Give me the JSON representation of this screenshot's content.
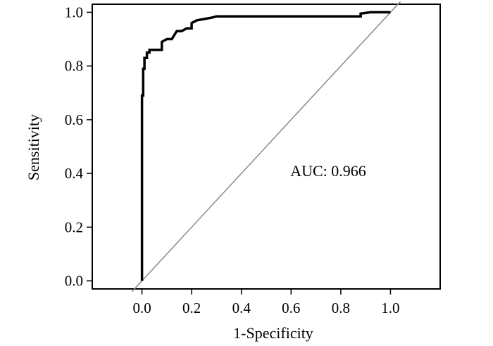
{
  "chart_data": {
    "type": "line",
    "xlabel": "1-Specificity",
    "ylabel": "Sensitivity",
    "xlim": [
      -0.2,
      1.2
    ],
    "ylim": [
      -0.03,
      1.03
    ],
    "xticks": [
      "0.0",
      "0.2",
      "0.4",
      "0.6",
      "0.8",
      "1.0"
    ],
    "yticks": [
      "0.0",
      "0.2",
      "0.4",
      "0.6",
      "0.8",
      "1.0"
    ],
    "annotation": "AUC: 0.966",
    "grid": false,
    "reference_line": {
      "x": [
        -0.04,
        1.04
      ],
      "y": [
        -0.04,
        1.04
      ],
      "color": "#8a8a8a"
    },
    "series": [
      {
        "color": "#000000",
        "x": [
          0.0,
          0.0,
          0.005,
          0.005,
          0.01,
          0.01,
          0.02,
          0.02,
          0.03,
          0.03,
          0.06,
          0.08,
          0.08,
          0.1,
          0.12,
          0.14,
          0.16,
          0.18,
          0.2,
          0.2,
          0.22,
          0.25,
          0.28,
          0.3,
          0.5,
          0.7,
          0.88,
          0.88,
          0.92,
          0.96,
          1.0
        ],
        "y": [
          0.0,
          0.69,
          0.69,
          0.79,
          0.79,
          0.83,
          0.83,
          0.85,
          0.85,
          0.86,
          0.86,
          0.86,
          0.89,
          0.9,
          0.9,
          0.93,
          0.93,
          0.94,
          0.94,
          0.96,
          0.97,
          0.975,
          0.98,
          0.985,
          0.985,
          0.985,
          0.985,
          0.995,
          1.0,
          1.0,
          1.0
        ]
      }
    ]
  }
}
